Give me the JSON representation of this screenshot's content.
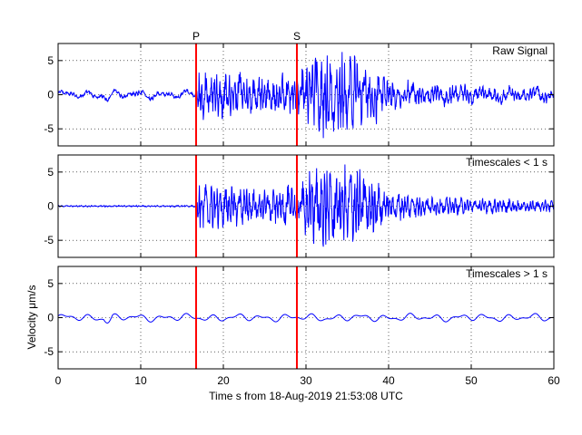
{
  "chart_data": {
    "type": "line",
    "xlabel": "Time s from 18-Aug-2019 21:53:08 UTC",
    "ylabel": "Velocity μm/s",
    "xlim": [
      0,
      60
    ],
    "xticks": [
      "0",
      "10",
      "20",
      "30",
      "40",
      "50",
      "60"
    ],
    "ylim": [
      -7.5,
      7.5
    ],
    "yticks": [
      "-5",
      "0",
      "5"
    ],
    "grid": true,
    "markers": [
      {
        "label": "P",
        "x": 16.7,
        "color": "#ff0000"
      },
      {
        "label": "S",
        "x": 28.9,
        "color": "#ff0000"
      }
    ],
    "series_color": "#0000ff",
    "panels": [
      {
        "title": "Raw Signal",
        "envelope": [
          {
            "x": 0,
            "amp": 0.25
          },
          {
            "x": 16.7,
            "amp": 0.3
          },
          {
            "x": 17,
            "amp": 3.5
          },
          {
            "x": 20,
            "amp": 3.0
          },
          {
            "x": 25,
            "amp": 2.2
          },
          {
            "x": 28.9,
            "amp": 3.0
          },
          {
            "x": 31,
            "amp": 5.5
          },
          {
            "x": 36,
            "amp": 5.5
          },
          {
            "x": 40,
            "amp": 2.2
          },
          {
            "x": 45,
            "amp": 1.3
          },
          {
            "x": 60,
            "amp": 0.8
          }
        ],
        "long_period_amp": 0.6
      },
      {
        "title": "Timescales < 1 s",
        "envelope": [
          {
            "x": 0,
            "amp": 0.1
          },
          {
            "x": 16.7,
            "amp": 0.12
          },
          {
            "x": 17,
            "amp": 3.5
          },
          {
            "x": 20,
            "amp": 3.0
          },
          {
            "x": 25,
            "amp": 2.2
          },
          {
            "x": 28.9,
            "amp": 3.0
          },
          {
            "x": 31,
            "amp": 5.5
          },
          {
            "x": 36,
            "amp": 5.5
          },
          {
            "x": 40,
            "amp": 2.2
          },
          {
            "x": 45,
            "amp": 1.3
          },
          {
            "x": 60,
            "amp": 0.8
          }
        ],
        "long_period_amp": 0
      },
      {
        "title": "Timescales > 1 s",
        "envelope": [
          {
            "x": 0,
            "amp": 0.0
          },
          {
            "x": 60,
            "amp": 0.0
          }
        ],
        "long_period_amp": 0.6
      }
    ]
  }
}
